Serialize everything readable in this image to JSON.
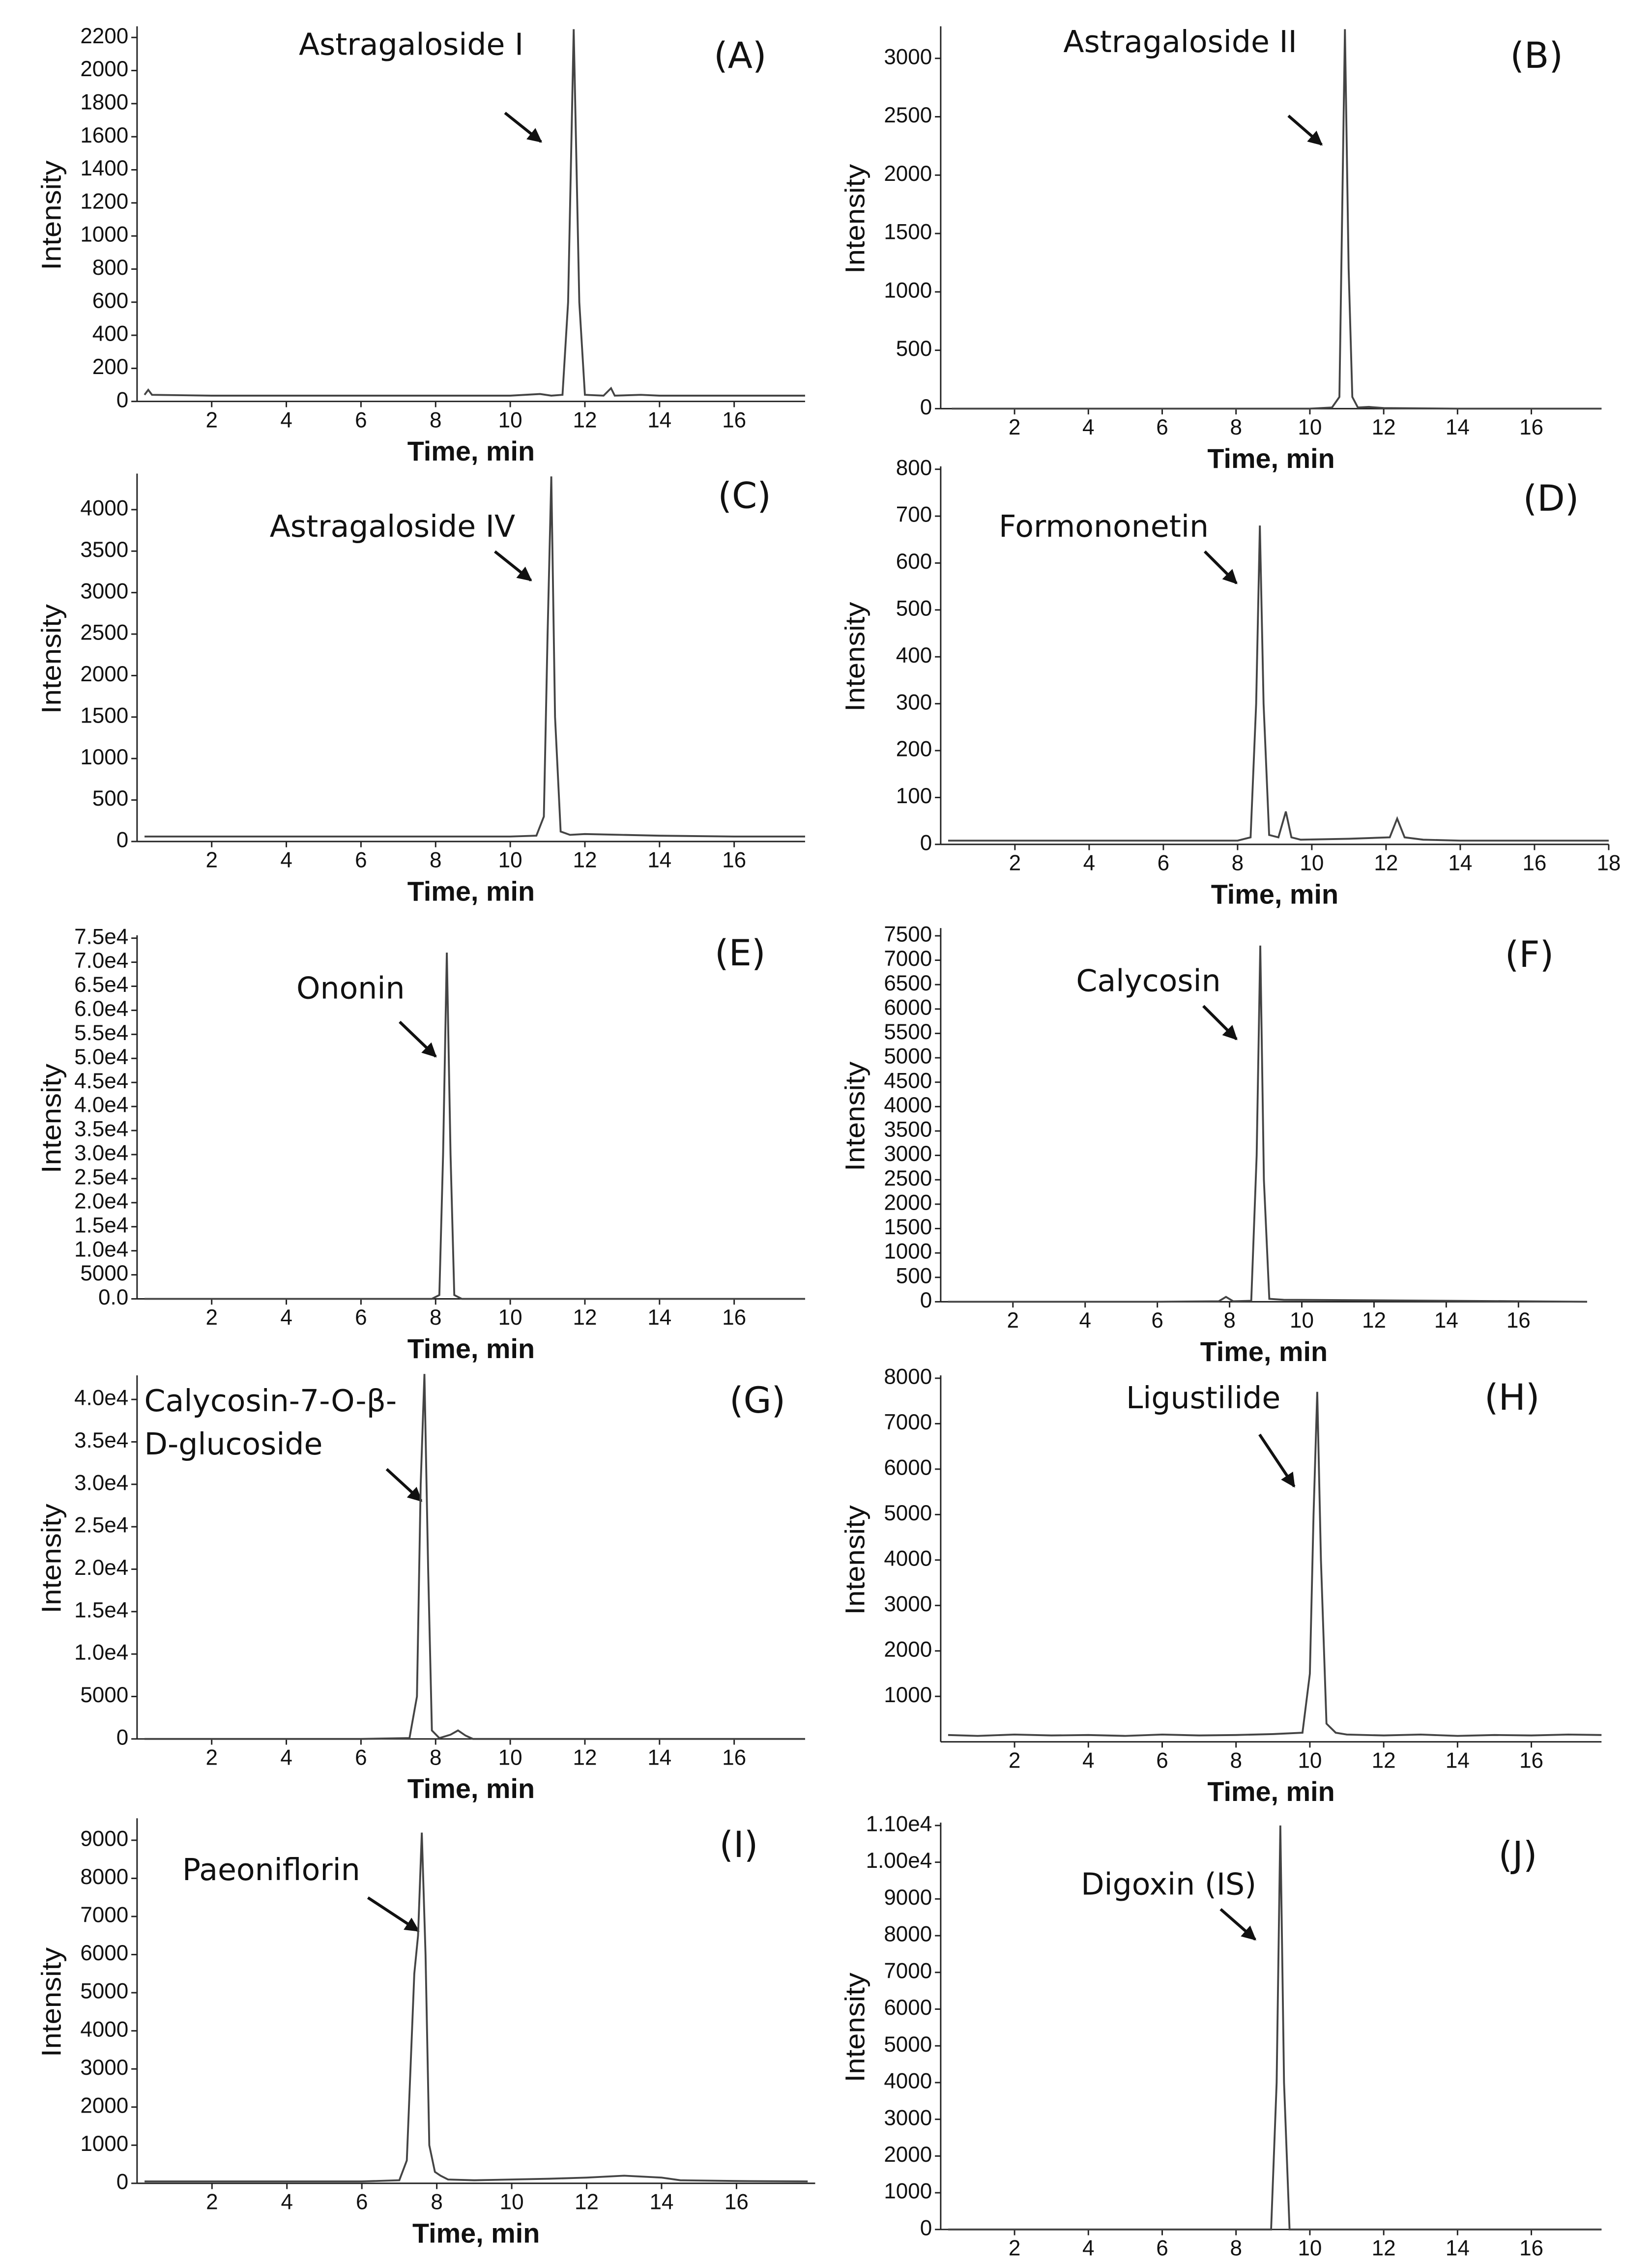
{
  "chart_data": [
    {
      "type": "line",
      "panel": "(A)",
      "annotation": "Astragaloside I",
      "x_label": "Time, min",
      "y_label": "Intensity",
      "color": "#444",
      "x": [
        0.2,
        0.3,
        0.4,
        2,
        4,
        6,
        8,
        10,
        10.8,
        11.1,
        11.4,
        11.55,
        11.7,
        11.85,
        12.0,
        12.5,
        12.7,
        12.8,
        13.5,
        14,
        16,
        17.9
      ],
      "values": [
        40,
        70,
        40,
        35,
        35,
        35,
        35,
        35,
        45,
        35,
        40,
        600,
        2250,
        600,
        40,
        35,
        80,
        35,
        40,
        35,
        35,
        35
      ],
      "xlim": [
        0,
        17.9
      ],
      "xticks": [
        2,
        4,
        6,
        8,
        10,
        12,
        14,
        16
      ],
      "ylim": [
        0,
        2250
      ],
      "yticks": [
        0,
        200,
        400,
        600,
        800,
        1000,
        1200,
        1400,
        1600,
        1800,
        2000,
        2200
      ]
    },
    {
      "type": "line",
      "panel": "(B)",
      "annotation": "Astragaloside II",
      "x_label": "Time, min",
      "y_label": "Intensity",
      "color": "#444",
      "x": [
        0.3,
        2,
        4,
        6,
        8,
        10,
        10.6,
        10.8,
        10.95,
        11.05,
        11.15,
        11.3,
        11.6,
        12,
        14,
        16,
        17.9
      ],
      "values": [
        0,
        0,
        0,
        0,
        0,
        0,
        10,
        100,
        3250,
        1200,
        100,
        10,
        15,
        5,
        0,
        0,
        0
      ],
      "xlim": [
        0,
        17.9
      ],
      "xticks": [
        2,
        4,
        6,
        8,
        10,
        12,
        14,
        16
      ],
      "ylim": [
        0,
        3250
      ],
      "yticks": [
        0,
        500,
        1000,
        1500,
        2000,
        2500,
        3000
      ]
    },
    {
      "type": "line",
      "panel": "(C)",
      "annotation": "Astragaloside IV",
      "x_label": "Time, min",
      "y_label": "Intensity",
      "color": "#444",
      "x": [
        0.2,
        2,
        4,
        6,
        8,
        10,
        10.7,
        10.9,
        11.0,
        11.1,
        11.2,
        11.35,
        11.6,
        12,
        13,
        14,
        16,
        17.9
      ],
      "values": [
        60,
        60,
        60,
        60,
        60,
        60,
        70,
        300,
        2500,
        4400,
        1500,
        120,
        80,
        90,
        80,
        70,
        60,
        60
      ],
      "xlim": [
        0,
        17.9
      ],
      "xticks": [
        2,
        4,
        6,
        8,
        10,
        12,
        14,
        16
      ],
      "ylim": [
        0,
        4400
      ],
      "yticks": [
        0,
        500,
        1000,
        1500,
        2000,
        2500,
        3000,
        3500,
        4000
      ]
    },
    {
      "type": "line",
      "panel": "(D)",
      "annotation": "Formononetin",
      "x_label": "Time, min",
      "y_label": "Intensity",
      "color": "#444",
      "x": [
        0.2,
        2,
        4,
        6,
        8,
        8.35,
        8.5,
        8.6,
        8.7,
        8.85,
        9.1,
        9.3,
        9.45,
        9.7,
        11,
        12.1,
        12.3,
        12.5,
        13,
        14,
        16,
        18
      ],
      "values": [
        8,
        8,
        8,
        8,
        8,
        15,
        300,
        680,
        300,
        20,
        15,
        70,
        15,
        10,
        12,
        15,
        55,
        15,
        10,
        8,
        8,
        8
      ],
      "xlim": [
        0,
        18
      ],
      "xticks": [
        2,
        4,
        6,
        8,
        10,
        12,
        14,
        16,
        18
      ],
      "ylim": [
        0,
        800
      ],
      "yticks": [
        0,
        100,
        200,
        300,
        400,
        500,
        600,
        700,
        800
      ]
    },
    {
      "type": "line",
      "panel": "(E)",
      "annotation": "Ononin",
      "x_label": "Time, min",
      "y_label": "Intensity",
      "color": "#444",
      "x": [
        0.2,
        2,
        4,
        6,
        7.9,
        8.1,
        8.2,
        8.3,
        8.4,
        8.5,
        8.7,
        10,
        12,
        14,
        16,
        17.9
      ],
      "values": [
        0,
        0,
        0,
        0,
        0,
        800,
        30000,
        72000,
        30000,
        800,
        0,
        0,
        0,
        0,
        0,
        0
      ],
      "xlim": [
        0,
        17.9
      ],
      "xticks": [
        2,
        4,
        6,
        8,
        10,
        12,
        14,
        16
      ],
      "ylim": [
        0,
        75000
      ],
      "yticks": [
        {
          "value": 0,
          "label": "0.0"
        },
        5000,
        {
          "value": 10000,
          "label": "1.0e4"
        },
        {
          "value": 15000,
          "label": "1.5e4"
        },
        {
          "value": 20000,
          "label": "2.0e4"
        },
        {
          "value": 25000,
          "label": "2.5e4"
        },
        {
          "value": 30000,
          "label": "3.0e4"
        },
        {
          "value": 35000,
          "label": "3.5e4"
        },
        {
          "value": 40000,
          "label": "4.0e4"
        },
        {
          "value": 45000,
          "label": "4.5e4"
        },
        {
          "value": 50000,
          "label": "5.0e4"
        },
        {
          "value": 55000,
          "label": "5.5e4"
        },
        {
          "value": 60000,
          "label": "6.0e4"
        },
        {
          "value": 65000,
          "label": "6.5e4"
        },
        {
          "value": 70000,
          "label": "7.0e4"
        },
        {
          "value": 75000,
          "label": "7.5e4"
        }
      ]
    },
    {
      "type": "line",
      "panel": "(F)",
      "annotation": "Calycosin",
      "x_label": "Time, min",
      "y_label": "Intensity",
      "color": "#444",
      "x": [
        0.2,
        2,
        4,
        6,
        7.7,
        7.9,
        8.1,
        8.6,
        8.75,
        8.85,
        8.95,
        9.1,
        9.5,
        12,
        14,
        16,
        17.9
      ],
      "values": [
        0,
        0,
        0,
        0,
        10,
        100,
        10,
        20,
        3000,
        7300,
        2500,
        60,
        40,
        30,
        20,
        10,
        0
      ],
      "xlim": [
        0,
        17.9
      ],
      "xticks": [
        2,
        4,
        6,
        8,
        10,
        12,
        14,
        16
      ],
      "ylim": [
        0,
        7600
      ],
      "yticks": [
        0,
        500,
        1000,
        1500,
        2000,
        2500,
        3000,
        3500,
        4000,
        4500,
        5000,
        5500,
        6000,
        6500,
        7000,
        7500
      ]
    },
    {
      "type": "line",
      "panel": "(G)",
      "annotation": [
        "Calycosin-7-O-β-",
        "D-glucoside"
      ],
      "x_label": "Time, min",
      "y_label": "Intensity",
      "color": "#444",
      "x": [
        0.2,
        2,
        4,
        6,
        7.3,
        7.5,
        7.6,
        7.7,
        7.8,
        7.9,
        8.1,
        8.4,
        8.6,
        8.8,
        9,
        12,
        14,
        16,
        17.9
      ],
      "values": [
        0,
        0,
        0,
        0,
        100,
        5000,
        30000,
        43000,
        20000,
        1000,
        100,
        500,
        1000,
        400,
        0,
        0,
        0,
        0,
        0
      ],
      "xlim": [
        0,
        17.9
      ],
      "xticks": [
        2,
        4,
        6,
        8,
        10,
        12,
        14,
        16
      ],
      "ylim": [
        0,
        42500
      ],
      "yticks": [
        0,
        5000,
        {
          "value": 10000,
          "label": "1.0e4"
        },
        {
          "value": 15000,
          "label": "1.5e4"
        },
        {
          "value": 20000,
          "label": "2.0e4"
        },
        {
          "value": 25000,
          "label": "2.5e4"
        },
        {
          "value": 30000,
          "label": "3.0e4"
        },
        {
          "value": 35000,
          "label": "3.5e4"
        },
        {
          "value": 40000,
          "label": "4.0e4"
        }
      ]
    },
    {
      "type": "line",
      "panel": "(H)",
      "annotation": "Ligustilide",
      "x_label": "Time, min",
      "y_label": "Intensity",
      "color": "#444",
      "x": [
        0.2,
        1,
        2,
        3,
        4,
        5,
        6,
        7,
        8,
        9,
        9.8,
        10.0,
        10.1,
        10.2,
        10.3,
        10.45,
        10.7,
        11,
        12,
        13,
        14,
        15,
        16,
        17,
        17.9
      ],
      "values": [
        150,
        130,
        160,
        140,
        150,
        130,
        160,
        140,
        150,
        170,
        200,
        1500,
        5000,
        7700,
        4000,
        400,
        200,
        160,
        140,
        160,
        130,
        150,
        140,
        160,
        150
      ],
      "xlim": [
        0,
        17.9
      ],
      "xticks": [
        2,
        4,
        6,
        8,
        10,
        12,
        14,
        16
      ],
      "ylim": [
        0,
        8000
      ],
      "yticks": [
        1000,
        2000,
        3000,
        4000,
        5000,
        6000,
        7000,
        8000
      ]
    },
    {
      "type": "line",
      "panel": "(I)",
      "annotation": "Paeoniflorin",
      "x_label": "Time, min",
      "y_label": "Intensity",
      "color": "#444",
      "x": [
        0.2,
        2,
        4,
        6,
        7.0,
        7.2,
        7.4,
        7.5,
        7.6,
        7.7,
        7.8,
        7.95,
        8.1,
        8.3,
        9,
        10,
        11,
        12,
        13,
        14,
        14.5,
        16,
        17.9
      ],
      "values": [
        50,
        50,
        50,
        50,
        80,
        600,
        5500,
        6500,
        9200,
        6000,
        1000,
        300,
        200,
        100,
        80,
        100,
        120,
        150,
        200,
        150,
        80,
        60,
        50
      ],
      "xlim": [
        0,
        18.1
      ],
      "xticks": [
        2,
        4,
        6,
        8,
        10,
        12,
        14,
        16
      ],
      "ylim": [
        0,
        9500
      ],
      "yticks": [
        0,
        1000,
        2000,
        3000,
        4000,
        5000,
        6000,
        7000,
        8000,
        9000
      ]
    },
    {
      "type": "line",
      "panel": "(J)",
      "annotation": "Digoxin (IS)",
      "x_label": "Time, min",
      "y_label": "Intensity",
      "color": "#444",
      "x": [
        0.2,
        2,
        4,
        6,
        8,
        8.95,
        9.1,
        9.2,
        9.3,
        9.45,
        10,
        12,
        14,
        16,
        17.9
      ],
      "values": [
        0,
        0,
        0,
        0,
        0,
        0,
        4000,
        11000,
        4000,
        0,
        0,
        0,
        0,
        0,
        0
      ],
      "xlim": [
        0,
        17.9
      ],
      "xticks": [
        2,
        4,
        6,
        8,
        10,
        12,
        14,
        16
      ],
      "ylim": [
        0,
        11000
      ],
      "yticks": [
        0,
        1000,
        2000,
        3000,
        4000,
        5000,
        6000,
        7000,
        8000,
        9000,
        {
          "value": 10000,
          "label": "1.00e4"
        },
        {
          "value": 11000,
          "label": "1.10e4"
        }
      ]
    }
  ]
}
